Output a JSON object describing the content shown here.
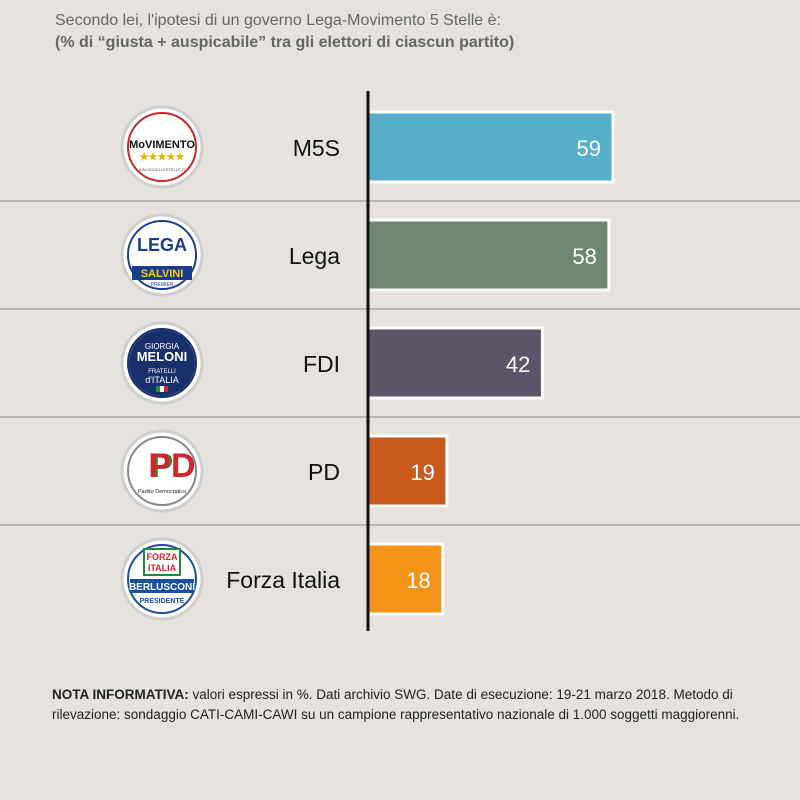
{
  "title": "Secondo lei, l'ipotesi di un governo Lega-Movimento 5 Stelle è:",
  "subtitle": "(% di “giusta + auspicabile” tra gli elettori di ciascun partito)",
  "note": {
    "label": "NOTA INFORMATIVA:",
    "text": " valori espressi in %. Dati archivio SWG. Date di esecuzione: 19-21 marzo 2018. Metodo di rilevazione: sondaggio CATI-CAMI-CAWI su un campione rappresentativo nazionale di 1.000 soggetti maggiorenni."
  },
  "chart_data": {
    "type": "bar",
    "orientation": "horizontal",
    "categories": [
      "M5S",
      "Lega",
      "FDI",
      "PD",
      "Forza Italia"
    ],
    "values": [
      59,
      58,
      42,
      19,
      18
    ],
    "colors": [
      "#56aecb",
      "#6e8770",
      "#5e546a",
      "#c85a1e",
      "#f39317"
    ],
    "title": "Secondo lei, l'ipotesi di un governo Lega-Movimento 5 Stelle è:",
    "subtitle": "(% di “giusta + auspicabile” tra gli elettori di ciascun partito)",
    "xlim": [
      0,
      59
    ],
    "grid": false
  },
  "logos": [
    {
      "name": "m5s-logo",
      "lines": [
        "MoVIMENTO",
        "★★★★★"
      ],
      "small": "ILBLOGDELLESTELLE.IT",
      "ring": "#c62828"
    },
    {
      "name": "lega-logo",
      "lines": [
        "LEGA",
        "SALVINI"
      ],
      "small": "PREMIER",
      "ring": "#1a3c8c"
    },
    {
      "name": "fdi-logo",
      "lines": [
        "GIORGIA",
        "MELONI",
        "FRATELLI",
        "d'ITALIA"
      ],
      "small": "",
      "ring": "#17306b"
    },
    {
      "name": "pd-logo",
      "lines": [
        "PD",
        "Partito Democratico"
      ],
      "small": "",
      "ring": "#888888"
    },
    {
      "name": "fi-logo",
      "lines": [
        "FORZA",
        "ITALIA",
        "BERLUSCONI",
        "PRESIDENTE"
      ],
      "small": "",
      "ring": "#1a4fa0"
    }
  ]
}
